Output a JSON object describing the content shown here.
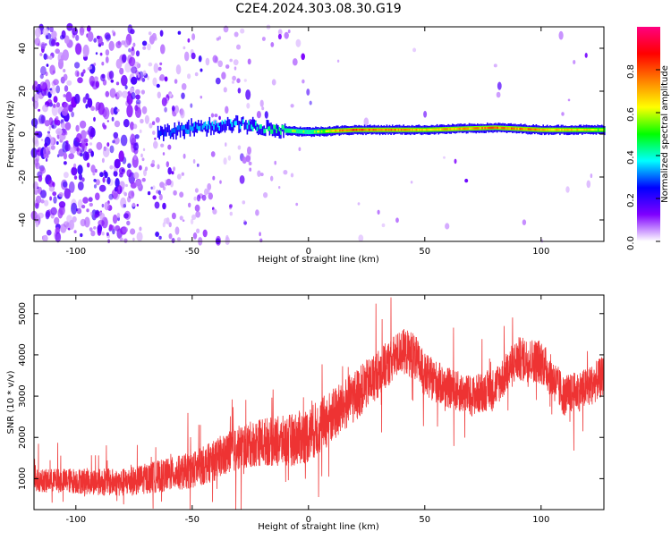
{
  "title": "C2E4.2024.303.08.30.G19",
  "chart_data": [
    {
      "type": "heatmap",
      "xlabel": "Height of straight line (km)",
      "ylabel": "Frequency (Hz)",
      "xlim": [
        -118,
        127
      ],
      "ylim": [
        -50,
        50
      ],
      "xticks": [
        -100,
        -50,
        0,
        50,
        100
      ],
      "yticks": [
        -40,
        -20,
        0,
        20,
        40
      ],
      "colorbar": {
        "label": "Normalized spectral amplitude",
        "range": [
          0,
          1
        ],
        "ticks": [
          0.0,
          0.2,
          0.4,
          0.6,
          0.8
        ],
        "tick_labels": [
          "0.0",
          "0.2",
          "0.4",
          "0.6",
          "0.8"
        ],
        "colors": [
          "#ffffff",
          "#7f00ff",
          "#0000ff",
          "#00ffff",
          "#00ff00",
          "#ffff00",
          "#ff8000",
          "#ff0000",
          "#ff0080"
        ]
      },
      "ridge": [
        {
          "x": -65,
          "freq": 0,
          "amp": 0.35
        },
        {
          "x": -50,
          "freq": 3,
          "amp": 0.45
        },
        {
          "x": -30,
          "freq": 5,
          "amp": 0.5
        },
        {
          "x": -15,
          "freq": 2,
          "amp": 0.6
        },
        {
          "x": 0,
          "freq": 1,
          "amp": 0.55
        },
        {
          "x": 20,
          "freq": 2,
          "amp": 0.85
        },
        {
          "x": 50,
          "freq": 2,
          "amp": 0.7
        },
        {
          "x": 80,
          "freq": 3,
          "amp": 0.8
        },
        {
          "x": 100,
          "freq": 2,
          "amp": 0.75
        },
        {
          "x": 127,
          "freq": 2,
          "amp": 0.65
        }
      ]
    },
    {
      "type": "line",
      "xlabel": "Height of straight line (km)",
      "ylabel": "SNR (10 * v/v)",
      "xlim": [
        -118,
        127
      ],
      "ylim": [
        250,
        5450
      ],
      "xticks": [
        -100,
        -50,
        0,
        50,
        100
      ],
      "yticks": [
        1000,
        2000,
        3000,
        4000,
        5000
      ],
      "series": [
        {
          "color": "#ee3333",
          "x": [
            -118,
            -100,
            -80,
            -60,
            -50,
            -40,
            -30,
            -20,
            -10,
            0,
            10,
            20,
            30,
            40,
            45,
            50,
            60,
            70,
            80,
            90,
            100,
            110,
            120,
            127
          ],
          "y": [
            950,
            950,
            900,
            1100,
            1200,
            1450,
            1750,
            1900,
            1900,
            2050,
            2500,
            3000,
            3550,
            4100,
            4000,
            3500,
            3200,
            3000,
            3200,
            3900,
            3850,
            3000,
            3200,
            3500
          ],
          "spread": [
            300,
            350,
            380,
            450,
            500,
            550,
            600,
            650,
            700,
            750,
            750,
            700,
            650,
            600,
            650,
            600,
            550,
            550,
            550,
            600,
            600,
            550,
            550,
            550
          ]
        }
      ]
    }
  ]
}
